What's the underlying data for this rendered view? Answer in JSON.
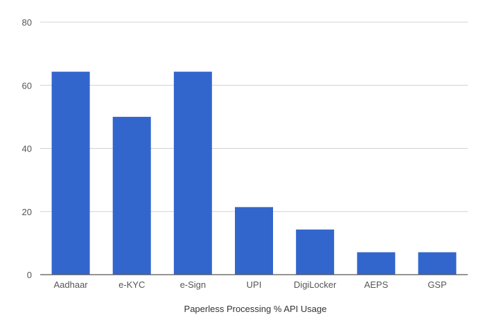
{
  "chart_data": {
    "type": "bar",
    "title": "",
    "xlabel": "Paperless Processing % API Usage",
    "ylabel": "",
    "categories": [
      "Aadhaar",
      "e-KYC",
      "e-Sign",
      "UPI",
      "DigiLocker",
      "AEPS",
      "GSP"
    ],
    "series": [
      {
        "values": [
          64.3,
          50.0,
          64.3,
          21.4,
          14.3,
          7.1,
          7.1
        ]
      }
    ],
    "ylim": [
      0,
      80
    ],
    "yticks": [
      "0",
      "20",
      "40",
      "60",
      "80"
    ],
    "grid": true,
    "legend": "none",
    "colors": {
      "bar": "#3366cc"
    }
  }
}
